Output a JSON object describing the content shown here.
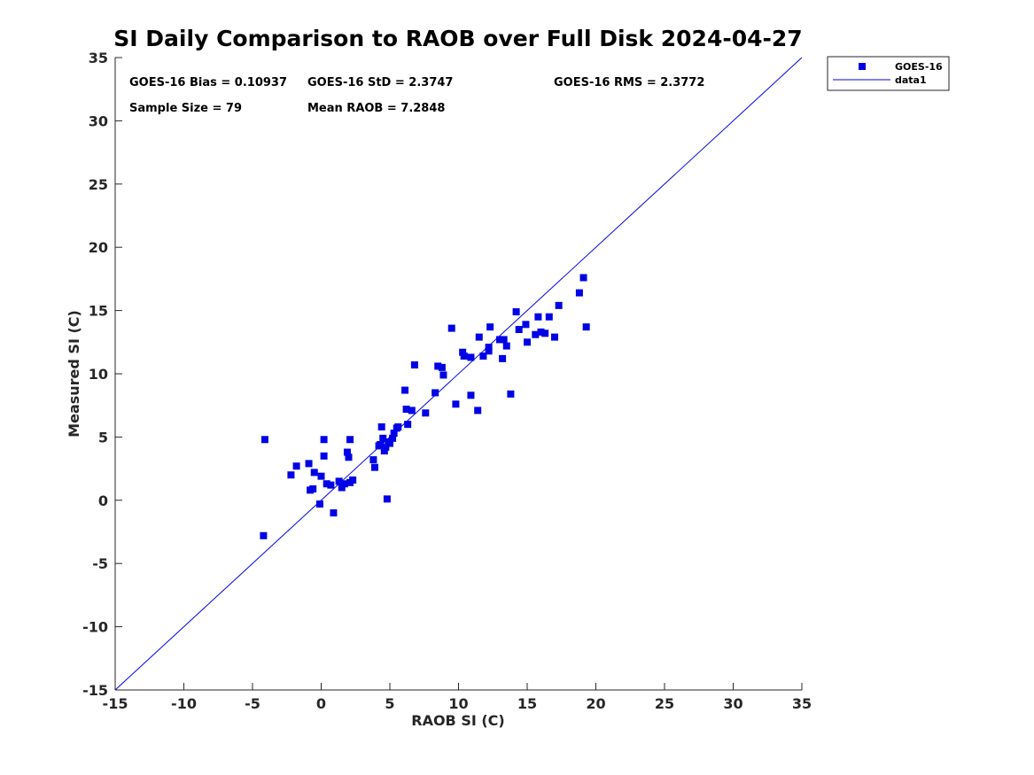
{
  "chart_data": {
    "type": "scatter",
    "title": "SI Daily Comparison to RAOB over Full Disk 2024-04-27",
    "xlabel": "RAOB SI (C)",
    "ylabel": "Measured SI (C)",
    "xlim": [
      -15,
      35
    ],
    "ylim": [
      -15,
      35
    ],
    "xticks": [
      "-15",
      "-10",
      "-5",
      "0",
      "5",
      "10",
      "15",
      "20",
      "25",
      "30",
      "35"
    ],
    "yticks": [
      "-15",
      "-10",
      "-5",
      "0",
      "5",
      "10",
      "15",
      "20",
      "25",
      "30",
      "35"
    ],
    "stats": {
      "bias": "GOES-16 Bias = 0.10937",
      "std": "GOES-16 StD = 2.3747",
      "rms": "GOES-16 RMS = 2.3772",
      "sample_size": "Sample Size = 79",
      "mean_raob": "Mean RAOB = 7.2848"
    },
    "legend": {
      "position": "outside-top-right",
      "entries": [
        "GOES-16",
        "data1"
      ]
    },
    "colors": {
      "marker": "#0000e6",
      "line": "#0000e6",
      "axis": "#262626"
    },
    "line": {
      "name": "data1",
      "x": [
        -15,
        35
      ],
      "y": [
        -15,
        35
      ]
    },
    "series": [
      {
        "name": "GOES-16",
        "x": [
          -4.2,
          -4.1,
          -2.2,
          -1.8,
          -0.9,
          -0.8,
          -0.6,
          -0.5,
          -0.1,
          0.0,
          0.2,
          0.2,
          0.4,
          0.7,
          0.9,
          1.3,
          1.5,
          1.7,
          1.9,
          2.0,
          2.1,
          2.3,
          2.1,
          3.8,
          3.9,
          4.2,
          4.3,
          4.4,
          4.5,
          4.6,
          4.7,
          4.8,
          4.9,
          5.0,
          5.2,
          5.3,
          5.5,
          5.6,
          6.1,
          6.2,
          6.3,
          6.6,
          6.8,
          7.6,
          8.3,
          8.5,
          8.8,
          8.9,
          9.5,
          9.8,
          10.3,
          10.4,
          10.9,
          10.9,
          11.4,
          11.5,
          11.8,
          12.2,
          12.2,
          12.3,
          13.0,
          13.2,
          13.3,
          13.5,
          13.8,
          14.2,
          14.4,
          15.0,
          14.9,
          15.6,
          15.8,
          16.0,
          16.3,
          16.6,
          17.0,
          17.3,
          18.8,
          19.1,
          19.3
        ],
        "y": [
          -2.8,
          4.8,
          2.0,
          2.7,
          2.9,
          0.8,
          0.9,
          2.2,
          -0.3,
          1.9,
          3.5,
          4.8,
          1.3,
          1.2,
          -1.0,
          1.5,
          1.0,
          1.3,
          3.8,
          3.4,
          4.8,
          1.6,
          1.4,
          3.2,
          2.6,
          4.3,
          4.4,
          5.8,
          4.9,
          3.9,
          4.2,
          0.1,
          4.6,
          4.5,
          4.9,
          5.3,
          5.7,
          5.8,
          8.7,
          7.2,
          6.0,
          7.1,
          10.7,
          6.9,
          8.5,
          10.6,
          10.5,
          9.9,
          13.6,
          7.6,
          11.7,
          11.4,
          8.3,
          11.3,
          7.1,
          12.9,
          11.4,
          12.1,
          11.8,
          13.7,
          12.7,
          11.2,
          12.7,
          12.2,
          8.4,
          14.9,
          13.5,
          12.5,
          13.9,
          13.1,
          14.5,
          13.3,
          13.2,
          14.5,
          12.9,
          15.4,
          16.4,
          17.6,
          13.7
        ]
      }
    ]
  }
}
